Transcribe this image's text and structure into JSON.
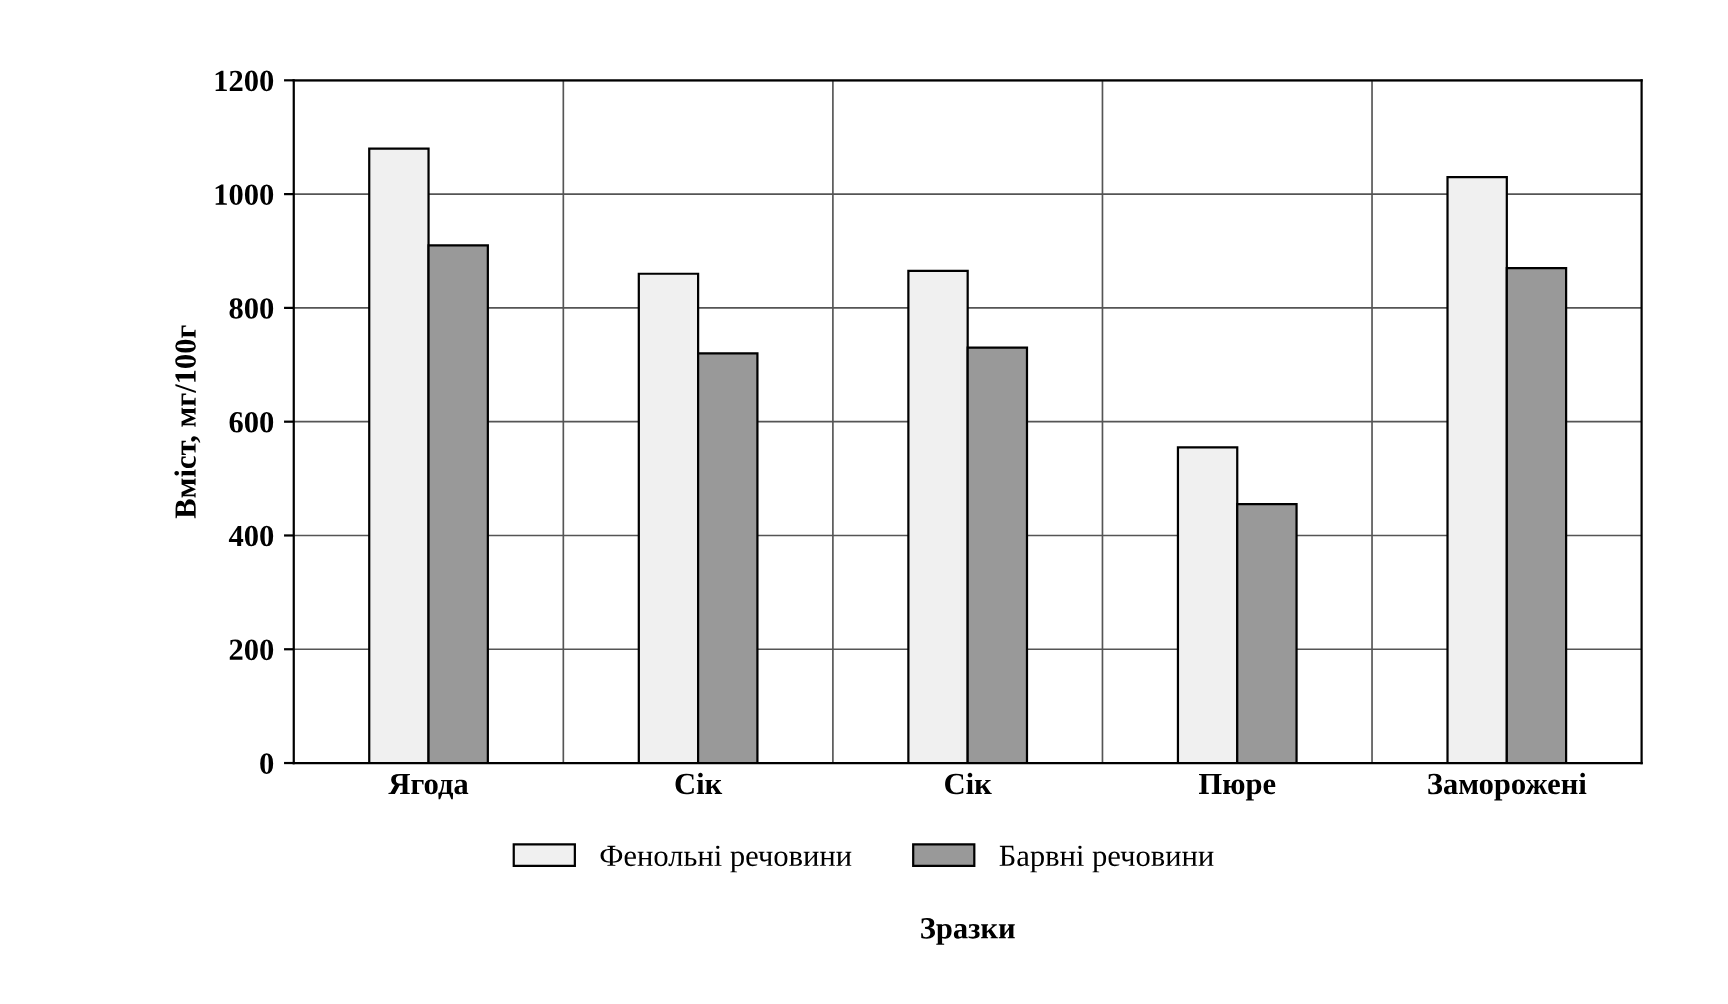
{
  "chart_data": {
    "type": "bar",
    "xlabel": "Зразки",
    "ylabel": "Вміст, мг/100г",
    "categories": [
      "Ягода",
      "Сік",
      "Сік",
      "Пюре",
      "Заморожені"
    ],
    "series": [
      {
        "name": "Фенольні речовини",
        "color": "#f0f0f0",
        "values": [
          1080,
          860,
          865,
          555,
          1030
        ]
      },
      {
        "name": "Барвні речовини",
        "color": "#999999",
        "values": [
          910,
          720,
          730,
          455,
          870
        ]
      }
    ],
    "ylim": [
      0,
      1200
    ],
    "yticks": [
      0,
      200,
      400,
      600,
      800,
      1000,
      1200
    ],
    "grid": true,
    "legend": "bottom"
  }
}
